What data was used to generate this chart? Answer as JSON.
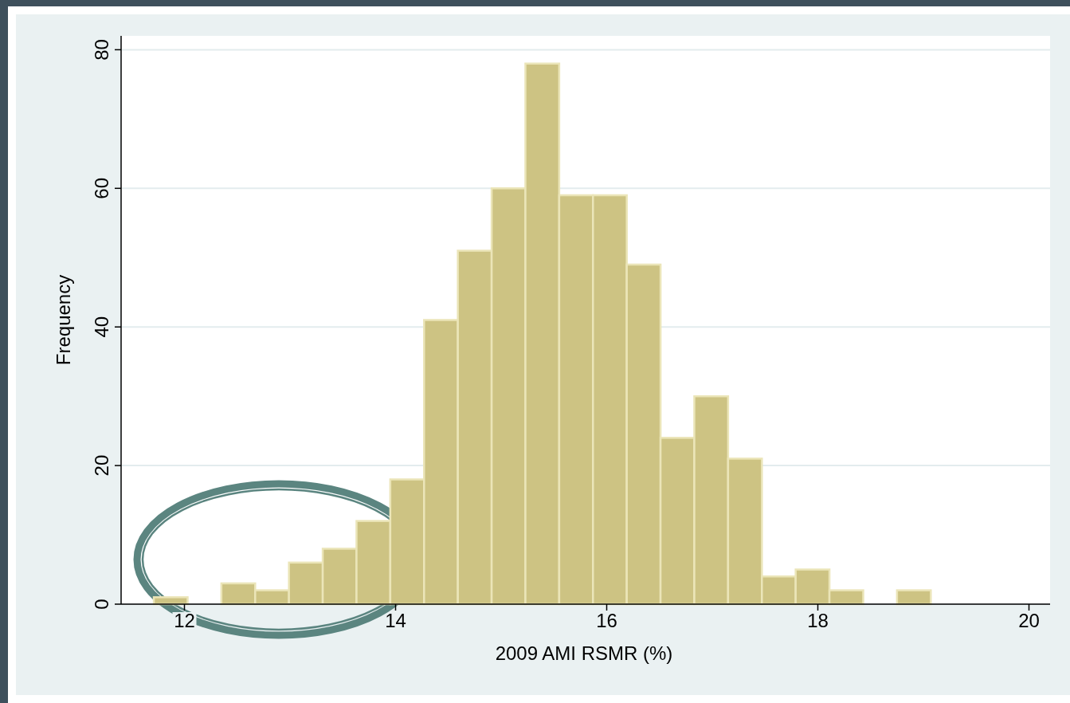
{
  "chart_data": {
    "type": "histogram",
    "xlabel": "2009 AMI RSMR (%)",
    "ylabel": "Frequency",
    "bins": [
      11.71,
      12.03,
      12.35,
      12.67,
      12.99,
      13.31,
      13.63,
      13.95,
      14.27,
      14.59,
      14.91,
      15.23,
      15.55,
      15.87,
      16.19,
      16.51,
      16.83,
      17.15,
      17.47,
      17.79,
      18.11,
      18.43,
      18.75,
      19.07
    ],
    "values": [
      1,
      0,
      3,
      2,
      6,
      8,
      12,
      18,
      41,
      51,
      60,
      78,
      59,
      59,
      49,
      24,
      30,
      21,
      4,
      5,
      2,
      0,
      2
    ],
    "color": "#cdc383",
    "xlim": [
      11.4,
      20.2
    ],
    "xticks": [
      12,
      14,
      16,
      18,
      20
    ],
    "ylim": [
      0,
      82
    ],
    "yticks": [
      0,
      20,
      40,
      60,
      80
    ],
    "grid": "y"
  }
}
